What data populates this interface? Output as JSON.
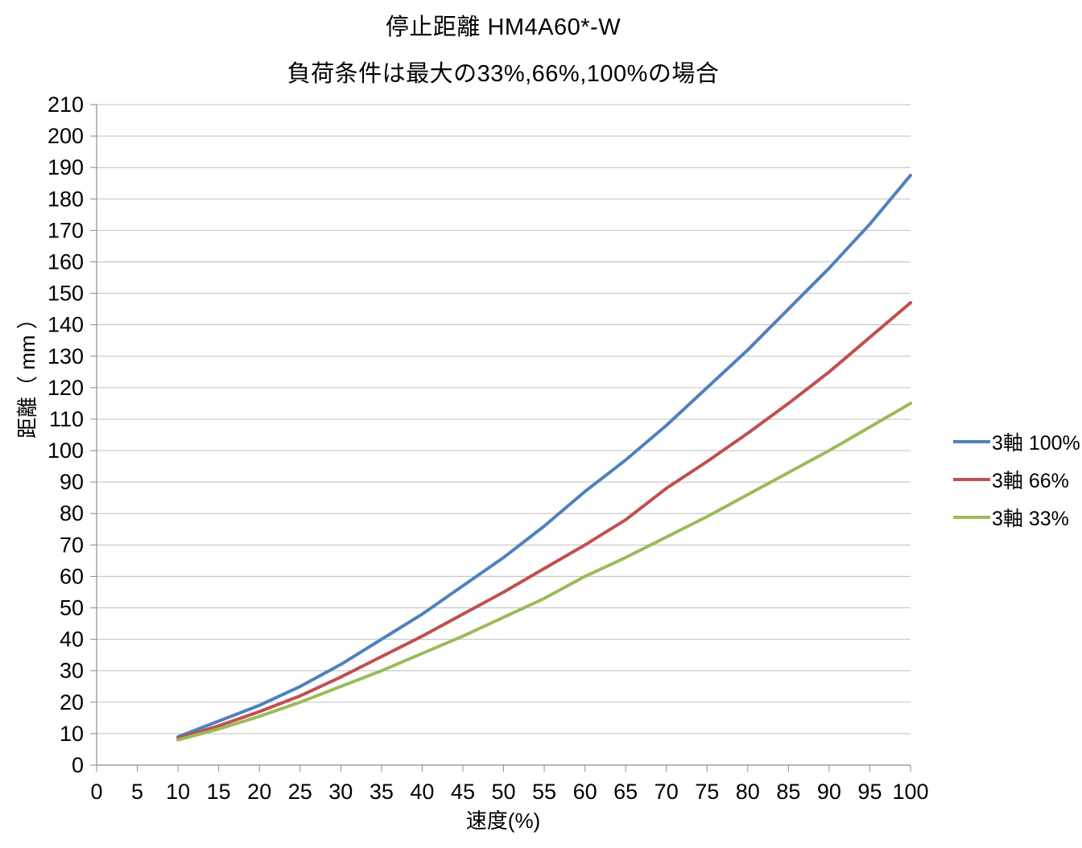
{
  "chart_data": {
    "type": "line",
    "title": "停止距離 HM4A60*-W",
    "subtitle": "負荷条件は最大の33%,66%,100%の場合",
    "xlabel": "速度(%)",
    "ylabel": "距離（ mm ）",
    "xlim": [
      0,
      100
    ],
    "ylim": [
      0,
      210
    ],
    "xtick_step": 5,
    "ytick_step": 10,
    "grid": "horizontal",
    "legend_position": "right",
    "x": [
      10,
      15,
      20,
      25,
      30,
      35,
      40,
      45,
      50,
      55,
      60,
      65,
      70,
      75,
      80,
      85,
      90,
      95,
      100
    ],
    "series": [
      {
        "name": "3軸 100%",
        "color": "#4F81BD",
        "values": [
          9,
          14,
          19,
          25,
          32,
          40,
          48,
          57,
          66,
          76,
          87,
          97,
          108,
          120,
          132,
          145,
          158,
          172,
          187.5
        ]
      },
      {
        "name": "3軸 66%",
        "color": "#C0504D",
        "values": [
          8.5,
          12.5,
          17,
          22,
          28,
          34.5,
          41,
          48,
          55,
          62.5,
          70,
          78,
          88,
          96.5,
          105.5,
          115,
          125,
          136,
          147
        ]
      },
      {
        "name": "3軸 33%",
        "color": "#9BBB59",
        "values": [
          8,
          11.5,
          15.5,
          20,
          25,
          30,
          35.5,
          41,
          47,
          53,
          60,
          66,
          72.5,
          79,
          86,
          93,
          100,
          107.5,
          115
        ]
      }
    ]
  },
  "colors": {
    "gridline": "#BFBFBF",
    "axis": "#8C8C8C",
    "text": "#000000",
    "background": "#FFFFFF"
  }
}
